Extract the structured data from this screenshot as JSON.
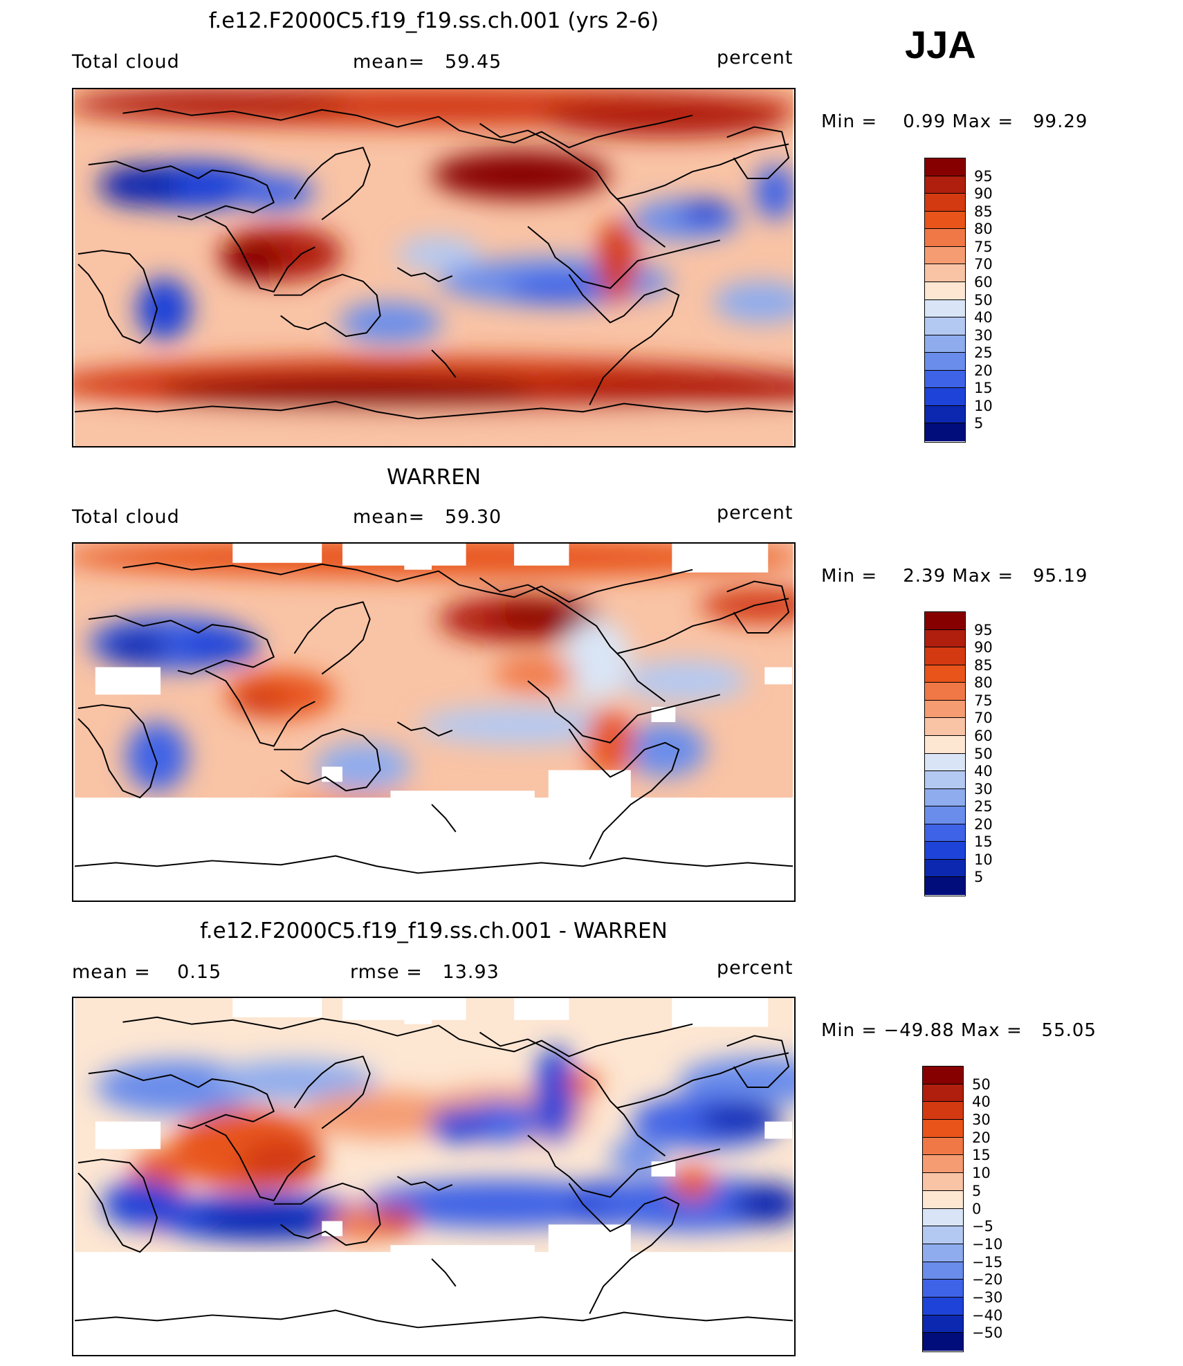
{
  "season": "JJA",
  "panels": [
    {
      "title": "f.e12.F2000C5.f19_f19.ss.ch.001 (yrs 2-6)",
      "left_label": "Total cloud",
      "center_label": "mean=   59.45",
      "right_label": "percent",
      "minmax": "Min =    0.99 Max =   99.29",
      "map_type": "model",
      "colorbar": {
        "labels": [
          "95",
          "90",
          "85",
          "80",
          "75",
          "70",
          "60",
          "50",
          "40",
          "30",
          "25",
          "20",
          "15",
          "10",
          "5"
        ],
        "colors": [
          "#870000",
          "#b01e0e",
          "#d33a12",
          "#e8541a",
          "#f07847",
          "#f59c72",
          "#f9c3a5",
          "#fde6d2",
          "#d9e5f6",
          "#b4c9f2",
          "#8eacee",
          "#6a8deb",
          "#3f63e6",
          "#1e43d8",
          "#0c28b0",
          "#000d7a"
        ]
      }
    },
    {
      "title": "WARREN",
      "left_label": "Total cloud",
      "center_label": "mean=   59.30",
      "right_label": "percent",
      "minmax": "Min =    2.39 Max =   95.19",
      "map_type": "obs",
      "colorbar": {
        "labels": [
          "95",
          "90",
          "85",
          "80",
          "75",
          "70",
          "60",
          "50",
          "40",
          "30",
          "25",
          "20",
          "15",
          "10",
          "5"
        ],
        "colors": [
          "#870000",
          "#b01e0e",
          "#d33a12",
          "#e8541a",
          "#f07847",
          "#f59c72",
          "#f9c3a5",
          "#fde6d2",
          "#d9e5f6",
          "#b4c9f2",
          "#8eacee",
          "#6a8deb",
          "#3f63e6",
          "#1e43d8",
          "#0c28b0",
          "#000d7a"
        ]
      }
    },
    {
      "title": "f.e12.F2000C5.f19_f19.ss.ch.001 - WARREN",
      "left_label": "mean =    0.15",
      "center_label": "rmse =   13.93",
      "right_label": "percent",
      "minmax": "Min = −49.88 Max =   55.05",
      "map_type": "diff",
      "colorbar": {
        "labels": [
          "50",
          "40",
          "30",
          "20",
          "15",
          "10",
          "5",
          "0",
          "−5",
          "−10",
          "−15",
          "−20",
          "−30",
          "−40",
          "−50"
        ],
        "colors": [
          "#870000",
          "#b01e0e",
          "#d33a12",
          "#e8541a",
          "#f07847",
          "#f59c72",
          "#f9c3a5",
          "#fde6d2",
          "#d9e5f6",
          "#b4c9f2",
          "#8eacee",
          "#6a8deb",
          "#3f63e6",
          "#1e43d8",
          "#0c28b0",
          "#000d7a"
        ]
      }
    }
  ]
}
